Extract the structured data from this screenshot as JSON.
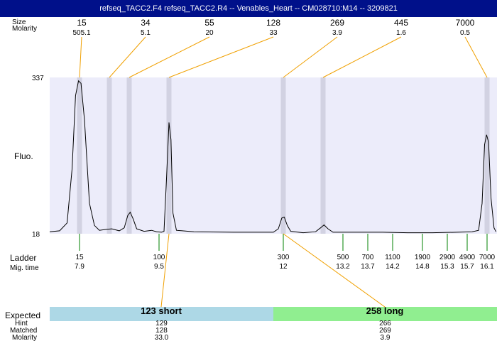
{
  "window": {
    "title": "refseq_TACC2.F4  refseq_TACC2.R4 -- Venables_Heart -- CM028710:M14 -- 3209821"
  },
  "header": {
    "size_label": "Size",
    "molarity_label": "Molarity"
  },
  "ladder_section": {
    "label": "Ladder",
    "mig_time_label": "Mig. time"
  },
  "fluo_label": "Fluo.",
  "expected_section": {
    "expected_label": "Expected",
    "hint_label": "Hint",
    "matched_label": "Matched",
    "molarity_label": "Molarity"
  },
  "colors": {
    "title_bg": "#00108a",
    "plot_bg": "#ececfa",
    "band": "#d2d2e2",
    "connector": "#f0a000",
    "ladder_tick": "#008000",
    "short_bar": "#add8e6",
    "long_bar": "#90ee90"
  },
  "chart_data": {
    "type": "line",
    "ylabel": "Fluo.",
    "ylim": [
      18,
      337
    ],
    "ytick_labels": [
      "337",
      "18"
    ],
    "peaks": [
      {
        "size": "15",
        "molarity": "505.1",
        "mig_time": 7.9
      },
      {
        "size": "34",
        "molarity": "5.1",
        "mig_time": 8.5
      },
      {
        "size": "55",
        "molarity": "20",
        "mig_time": 8.9
      },
      {
        "size": "128",
        "molarity": "33",
        "mig_time": 9.7
      },
      {
        "size": "269",
        "molarity": "3.9",
        "mig_time": 12.0
      },
      {
        "size": "445",
        "molarity": "1.6",
        "mig_time": 12.8
      },
      {
        "size": "7000",
        "molarity": "0.5",
        "mig_time": 16.1
      }
    ],
    "ladder": [
      {
        "size": "15",
        "mig_time": "7.9"
      },
      {
        "size": "100",
        "mig_time": "9.5"
      },
      {
        "size": "300",
        "mig_time": "12"
      },
      {
        "size": "500",
        "mig_time": "13.2"
      },
      {
        "size": "700",
        "mig_time": "13.7"
      },
      {
        "size": "1100",
        "mig_time": "14.2"
      },
      {
        "size": "1900",
        "mig_time": "14.8"
      },
      {
        "size": "2900",
        "mig_time": "15.3"
      },
      {
        "size": "4900",
        "mig_time": "15.7"
      },
      {
        "size": "7000",
        "mig_time": "16.1"
      }
    ],
    "trace": [
      [
        7.3,
        22
      ],
      [
        7.5,
        24
      ],
      [
        7.65,
        40
      ],
      [
        7.75,
        150
      ],
      [
        7.82,
        300
      ],
      [
        7.88,
        330
      ],
      [
        7.93,
        325
      ],
      [
        8.0,
        250
      ],
      [
        8.1,
        80
      ],
      [
        8.2,
        35
      ],
      [
        8.3,
        25
      ],
      [
        8.45,
        27
      ],
      [
        8.55,
        28
      ],
      [
        8.7,
        24
      ],
      [
        8.8,
        30
      ],
      [
        8.87,
        55
      ],
      [
        8.92,
        62
      ],
      [
        8.98,
        48
      ],
      [
        9.05,
        28
      ],
      [
        9.2,
        23
      ],
      [
        9.35,
        25
      ],
      [
        9.45,
        22
      ],
      [
        9.55,
        21
      ],
      [
        9.6,
        23
      ],
      [
        9.65,
        130
      ],
      [
        9.7,
        245
      ],
      [
        9.74,
        210
      ],
      [
        9.78,
        60
      ],
      [
        9.85,
        25
      ],
      [
        10.2,
        22
      ],
      [
        11.0,
        21
      ],
      [
        11.8,
        21
      ],
      [
        11.9,
        28
      ],
      [
        11.97,
        50
      ],
      [
        12.02,
        52
      ],
      [
        12.08,
        35
      ],
      [
        12.15,
        23
      ],
      [
        12.4,
        20
      ],
      [
        12.65,
        22
      ],
      [
        12.75,
        30
      ],
      [
        12.82,
        36
      ],
      [
        12.9,
        28
      ],
      [
        13.0,
        21
      ],
      [
        13.5,
        21
      ],
      [
        14.0,
        21
      ],
      [
        14.5,
        20
      ],
      [
        15.0,
        20
      ],
      [
        15.5,
        21
      ],
      [
        15.8,
        22
      ],
      [
        15.93,
        25
      ],
      [
        16.0,
        80
      ],
      [
        16.05,
        200
      ],
      [
        16.09,
        220
      ],
      [
        16.13,
        205
      ],
      [
        16.18,
        90
      ],
      [
        16.24,
        30
      ],
      [
        16.28,
        22
      ]
    ],
    "expected": [
      {
        "label": "123 short",
        "hint": "129",
        "matched": "128",
        "molarity": "33.0",
        "peak_size": "128"
      },
      {
        "label": "258 long",
        "hint": "266",
        "matched": "269",
        "molarity": "3.9",
        "peak_size": "269"
      }
    ]
  }
}
